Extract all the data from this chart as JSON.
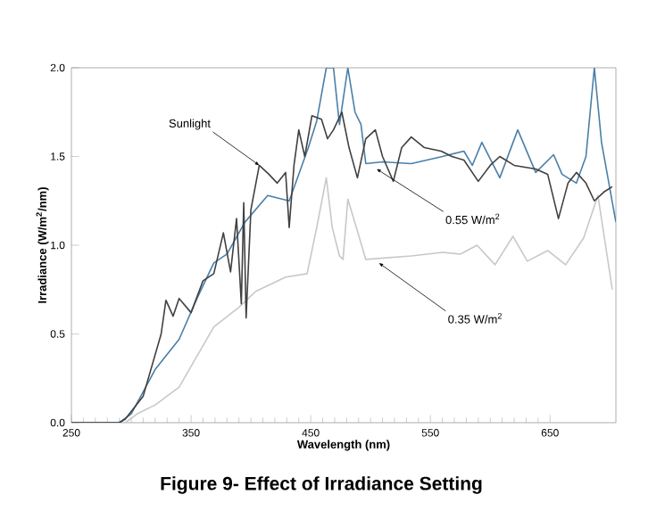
{
  "chart_data": {
    "type": "line",
    "title": "Figure 9- Effect of Irradiance Setting",
    "xlabel": "Wavelength (nm)",
    "ylabel": "Irradiance (W/m$^{2}$/nm)",
    "xlim": [
      250,
      705
    ],
    "ylim": [
      0,
      2
    ],
    "xticks": [
      250,
      350,
      450,
      550,
      650
    ],
    "yticks": [
      {
        "value": 0,
        "label": "0.0"
      },
      {
        "value": 0.5,
        "label": "0.5"
      },
      {
        "value": 1,
        "label": "1.0"
      },
      {
        "value": 1.5,
        "label": "1.5"
      },
      {
        "value": 2,
        "label": "2.0"
      }
    ],
    "series": [
      {
        "color": "#c8c8c8",
        "x": [
          250,
          295,
          305,
          320,
          340,
          369,
          390,
          404,
          429,
          447,
          455,
          463,
          468,
          474,
          477,
          481,
          489,
          496,
          534,
          560,
          575,
          589,
          604,
          619,
          631,
          648,
          663,
          678,
          690,
          702
        ],
        "values": [
          0,
          0,
          0.05,
          0.1,
          0.2,
          0.54,
          0.65,
          0.74,
          0.82,
          0.84,
          1.1,
          1.38,
          1.1,
          0.94,
          0.92,
          1.26,
          1.08,
          0.92,
          0.94,
          0.96,
          0.95,
          1.0,
          0.89,
          1.05,
          0.91,
          0.97,
          0.89,
          1.04,
          1.28,
          0.75
        ]
      },
      {
        "color": "#4a7fa8",
        "x": [
          250,
          290,
          300,
          320,
          340,
          355,
          369,
          380,
          395,
          414,
          432,
          440,
          448,
          455,
          463,
          469,
          474,
          481,
          487,
          492,
          496,
          510,
          534,
          560,
          578,
          585,
          593,
          608,
          623,
          638,
          653,
          660,
          672,
          680,
          687,
          693,
          705
        ],
        "values": [
          0,
          0,
          0.05,
          0.3,
          0.47,
          0.7,
          0.9,
          0.95,
          1.13,
          1.28,
          1.25,
          1.4,
          1.55,
          1.7,
          2.0,
          2.0,
          1.68,
          2.0,
          1.75,
          1.68,
          1.46,
          1.47,
          1.46,
          1.5,
          1.53,
          1.45,
          1.58,
          1.38,
          1.65,
          1.41,
          1.51,
          1.4,
          1.35,
          1.5,
          2.0,
          1.58,
          1.13
        ]
      },
      {
        "color": "#404040",
        "x": [
          250,
          290,
          295,
          310,
          325,
          329,
          335,
          340,
          350,
          360,
          369,
          377,
          383,
          388,
          392,
          394,
          396,
          400,
          407,
          415,
          422,
          429,
          432,
          436,
          440,
          445,
          451,
          459,
          464,
          469,
          476,
          482,
          489,
          496,
          504,
          510,
          519,
          526,
          534,
          545,
          559,
          568,
          578,
          590,
          600,
          608,
          620,
          638,
          648,
          657,
          665,
          672,
          680,
          687,
          695,
          702
        ],
        "values": [
          0,
          0,
          0.02,
          0.15,
          0.5,
          0.69,
          0.6,
          0.7,
          0.62,
          0.8,
          0.84,
          1.07,
          0.85,
          1.15,
          0.67,
          1.24,
          0.59,
          1.2,
          1.45,
          1.4,
          1.35,
          1.41,
          1.1,
          1.45,
          1.65,
          1.5,
          1.73,
          1.71,
          1.6,
          1.65,
          1.75,
          1.55,
          1.38,
          1.6,
          1.65,
          1.5,
          1.36,
          1.55,
          1.61,
          1.55,
          1.53,
          1.5,
          1.48,
          1.36,
          1.45,
          1.5,
          1.45,
          1.43,
          1.4,
          1.15,
          1.35,
          1.41,
          1.35,
          1.25,
          1.3,
          1.33
        ]
      }
    ],
    "annotations": [
      {
        "text": "Sunlight",
        "x": 407,
        "y": 1.45
      },
      {
        "text": "0.55 W/m$^{2}$",
        "x": 505,
        "y": 1.43
      },
      {
        "text": "0.35 W/m$^{2}$",
        "x": 507,
        "y": 0.9
      }
    ]
  }
}
